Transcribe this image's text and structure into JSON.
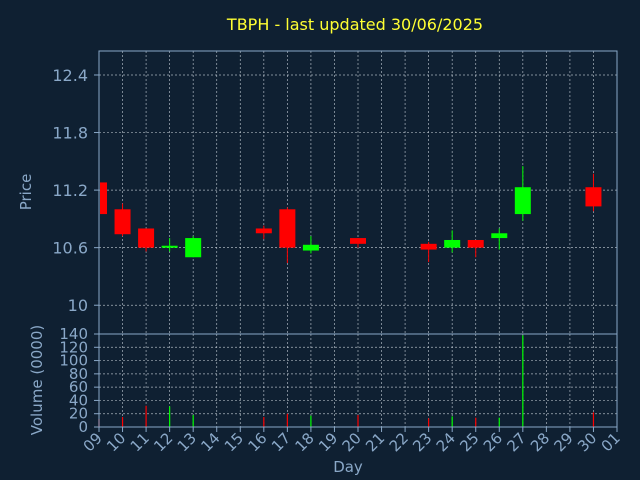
{
  "chart_data": [
    {
      "type": "candlestick",
      "title": "TBPH - last updated 30/06/2025",
      "ylabel": "Price",
      "xlabel": "",
      "ylim": [
        9.7,
        12.65
      ],
      "y_ticks": [
        "12.4",
        "11.8",
        "11.2",
        "10.6",
        "10"
      ],
      "y_tick_values": [
        12.4,
        11.8,
        11.2,
        10.6,
        10.0
      ],
      "x_ticks": [
        "09",
        "10",
        "11",
        "12",
        "13",
        "14",
        "15",
        "16",
        "17",
        "18",
        "19",
        "20",
        "21",
        "22",
        "23",
        "24",
        "25",
        "26",
        "27",
        "28",
        "29",
        "30",
        "01"
      ],
      "grid": true,
      "candles": [
        {
          "x": "09",
          "open": 11.28,
          "high": 11.28,
          "low": 10.95,
          "close": 10.95
        },
        {
          "x": "10",
          "open": 11.0,
          "high": 11.06,
          "low": 10.72,
          "close": 10.74
        },
        {
          "x": "11",
          "open": 10.8,
          "high": 10.8,
          "low": 10.56,
          "close": 10.6
        },
        {
          "x": "12",
          "open": 10.6,
          "high": 10.7,
          "low": 10.56,
          "close": 10.62
        },
        {
          "x": "13",
          "open": 10.5,
          "high": 10.72,
          "low": 10.5,
          "close": 10.7
        },
        {
          "x": "16",
          "open": 10.8,
          "high": 10.83,
          "low": 10.69,
          "close": 10.75
        },
        {
          "x": "17",
          "open": 11.0,
          "high": 11.02,
          "low": 10.44,
          "close": 10.6
        },
        {
          "x": "18",
          "open": 10.57,
          "high": 10.72,
          "low": 10.54,
          "close": 10.63
        },
        {
          "x": "20",
          "open": 10.7,
          "high": 10.7,
          "low": 10.6,
          "close": 10.64
        },
        {
          "x": "23",
          "open": 10.64,
          "high": 10.66,
          "low": 10.45,
          "close": 10.58
        },
        {
          "x": "24",
          "open": 10.6,
          "high": 10.78,
          "low": 10.55,
          "close": 10.68
        },
        {
          "x": "25",
          "open": 10.68,
          "high": 10.68,
          "low": 10.5,
          "close": 10.6
        },
        {
          "x": "26",
          "open": 10.7,
          "high": 10.8,
          "low": 10.58,
          "close": 10.75
        },
        {
          "x": "27",
          "open": 10.95,
          "high": 11.45,
          "low": 10.88,
          "close": 11.23
        },
        {
          "x": "30",
          "open": 11.23,
          "high": 11.37,
          "low": 10.98,
          "close": 11.03
        }
      ]
    },
    {
      "type": "bar",
      "ylabel": "Volume (0000)",
      "xlabel": "Day",
      "ylim": [
        0,
        140
      ],
      "y_ticks": [
        "140",
        "120",
        "100",
        "80",
        "60",
        "40",
        "20",
        "0"
      ],
      "y_tick_values": [
        140,
        120,
        100,
        80,
        60,
        40,
        20,
        0
      ],
      "x_ticks": [
        "09",
        "10",
        "11",
        "12",
        "13",
        "14",
        "15",
        "16",
        "17",
        "18",
        "19",
        "20",
        "21",
        "22",
        "23",
        "24",
        "25",
        "26",
        "27",
        "28",
        "29",
        "30",
        "01"
      ],
      "categories": [
        "09",
        "10",
        "11",
        "12",
        "13",
        "16",
        "17",
        "18",
        "20",
        "23",
        "24",
        "25",
        "26",
        "27",
        "30"
      ],
      "values": [
        12,
        15,
        32,
        31,
        18,
        15,
        20,
        17,
        18,
        13,
        16,
        14,
        14,
        138,
        22
      ],
      "direction": [
        "down",
        "down",
        "down",
        "up",
        "up",
        "down",
        "down",
        "up",
        "down",
        "down",
        "up",
        "down",
        "up",
        "up",
        "down"
      ]
    }
  ],
  "colors": {
    "background": "#0f2032",
    "title": "#ffff33",
    "axis_text": "#8aa8c8",
    "axis_line": "#8aa8c8",
    "grid": "#d0d8e0",
    "up": "#00ff00",
    "down": "#ff0000"
  }
}
